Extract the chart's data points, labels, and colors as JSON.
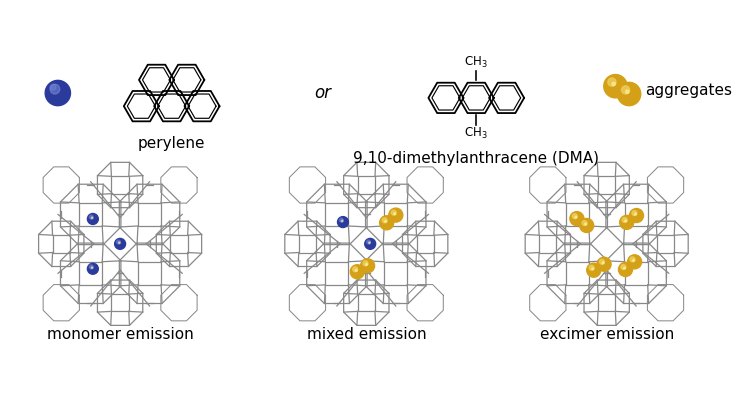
{
  "blue_color": "#2B3B9B",
  "yellow_color": "#D4A017",
  "yellow_bright": "#E8C020",
  "yellow_highlight": "#F0D060",
  "cage_color": "#888888",
  "background": "#ffffff",
  "label_perylene": "perylene",
  "label_dma": "9,10-dimethylanthracene (DMA)",
  "label_aggregates": "aggregates",
  "label_monomer": "monomer emission",
  "label_mixed": "mixed emission",
  "label_excimer": "excimer emission",
  "label_or": "or",
  "font_size_label": 11,
  "font_size_sub": 9
}
